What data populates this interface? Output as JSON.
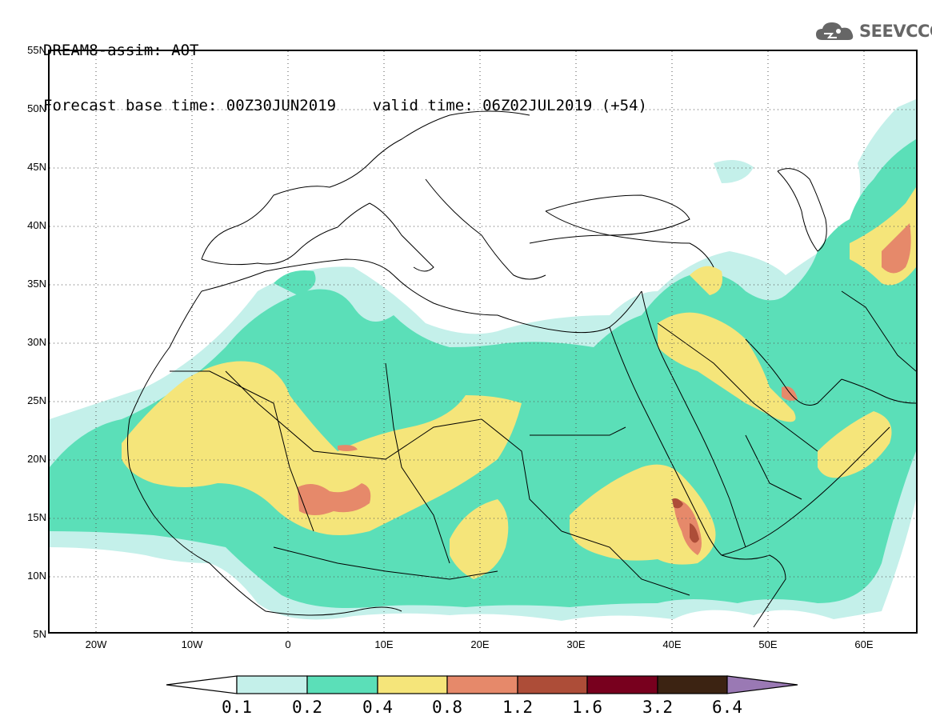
{
  "header": {
    "line1": "DREAM8-assim: AOT",
    "line2": "Forecast base time: 00Z30JUN2019    valid time: 06Z02JUL2019 (+54)"
  },
  "logo": {
    "text": "SEEVCCC",
    "icon": "cloud-icon"
  },
  "map": {
    "projection": "lat-lon",
    "lat_range": [
      "5N",
      "55N"
    ],
    "lon_range": [
      "25W",
      "65E"
    ],
    "lat_ticks": [
      "55N",
      "50N",
      "45N",
      "40N",
      "35N",
      "30N",
      "25N",
      "20N",
      "15N",
      "10N",
      "5N"
    ],
    "lon_ticks": [
      "20W",
      "10W",
      "0",
      "10E",
      "20E",
      "30E",
      "40E",
      "50E",
      "60E"
    ],
    "grid": true
  },
  "colorbar": {
    "labels": [
      "0.1",
      "0.2",
      "0.4",
      "0.8",
      "1.2",
      "1.6",
      "3.2",
      "6.4"
    ],
    "colors": [
      "#c4f0ea",
      "#5bdfb8",
      "#f5e57a",
      "#e6896a",
      "#ad4d38",
      "#78001e",
      "#3c2312",
      "#9a79b4"
    ]
  }
}
